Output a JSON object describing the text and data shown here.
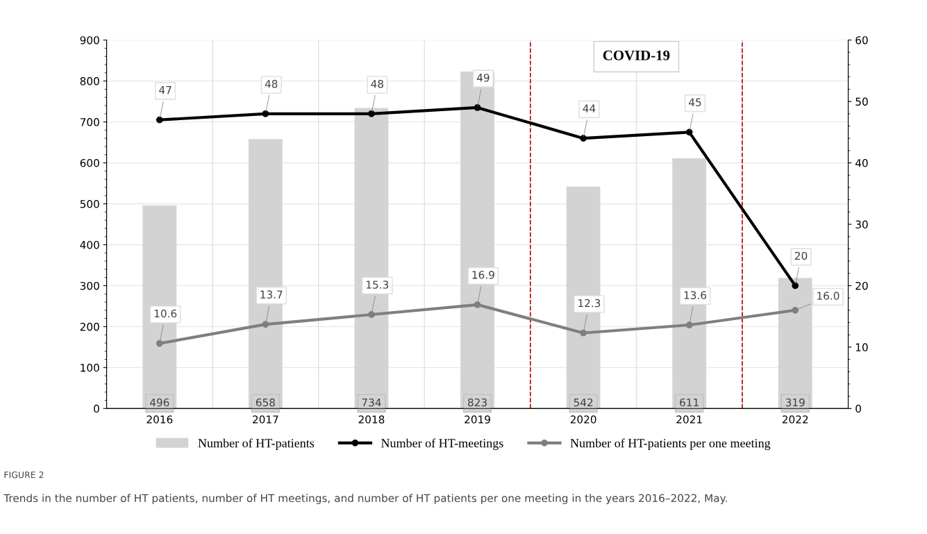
{
  "chart_data": {
    "type": "bar",
    "categories": [
      "2016",
      "2017",
      "2018",
      "2019",
      "2020",
      "2021",
      "2022"
    ],
    "series": [
      {
        "name": "Number of HT-patients",
        "color": "#d3d3d3",
        "values": [
          496,
          658,
          734,
          823,
          542,
          611,
          319
        ]
      },
      {
        "name": "Number of HT-meetings",
        "type": "line",
        "axis": "y2",
        "color": "#000000",
        "values": [
          47,
          48,
          48,
          49,
          44,
          45,
          20
        ]
      },
      {
        "name": "Number of HT-patients per one meeting",
        "type": "line",
        "axis": "y2",
        "color": "#7f7f7f",
        "values": [
          10.6,
          13.7,
          15.3,
          16.9,
          12.3,
          13.6,
          16.0
        ],
        "value_labels": [
          "10.6",
          "13.7",
          "15.3",
          "16.9",
          "12.3",
          "13.6",
          "16.0"
        ]
      }
    ],
    "data_labels": true,
    "marker": "circle",
    "line_style": "solid",
    "ylim": [
      0,
      900
    ],
    "yticks": [
      0,
      100,
      200,
      300,
      400,
      500,
      600,
      700,
      800,
      900
    ],
    "y2lim": [
      0,
      60
    ],
    "y2ticks": [
      0,
      10,
      20,
      30,
      40,
      50,
      60
    ],
    "annotations": [
      "COVID-19",
      "FIGURE 2",
      "Trends in the number of HT patients, number of HT meetings, and number of HT patients per one meeting in the years 2016–2022, May."
    ],
    "grid": true,
    "legend": "bottom"
  }
}
